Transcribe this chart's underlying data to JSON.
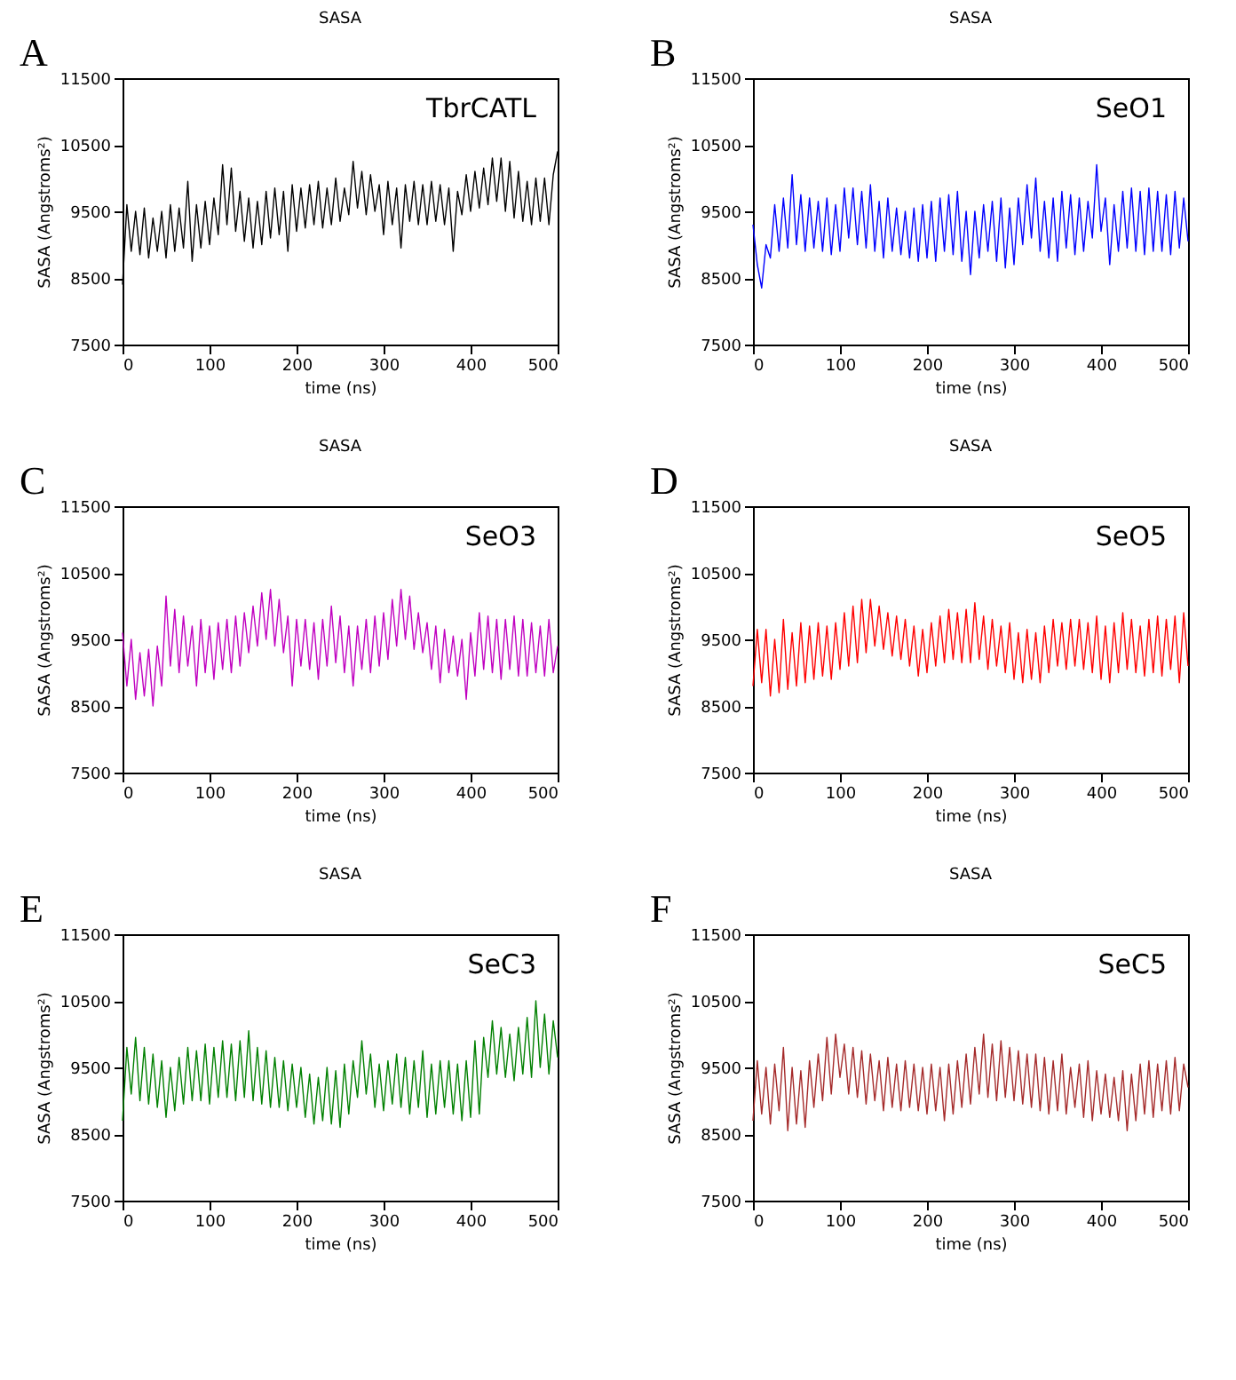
{
  "chart_data": [
    {
      "type": "line",
      "title": "SASA",
      "xlabel": "time (ns)",
      "ylabel": "SASA (Angstroms²)",
      "annotations": [
        "A",
        "TbrCATL"
      ],
      "xlim": [
        0,
        500
      ],
      "ylim": [
        7500,
        11500
      ],
      "xticks": [
        0,
        100,
        200,
        300,
        400,
        500
      ],
      "yticks": [
        7500,
        8500,
        9500,
        10500,
        11500
      ],
      "x": [
        0,
        5,
        10,
        15,
        20,
        25,
        30,
        35,
        40,
        45,
        50,
        55,
        60,
        65,
        70,
        75,
        80,
        85,
        90,
        95,
        100,
        105,
        110,
        115,
        120,
        125,
        130,
        135,
        140,
        145,
        150,
        155,
        160,
        165,
        170,
        175,
        180,
        185,
        190,
        195,
        200,
        205,
        210,
        215,
        220,
        225,
        230,
        235,
        240,
        245,
        250,
        255,
        260,
        265,
        270,
        275,
        280,
        285,
        290,
        295,
        300,
        305,
        310,
        315,
        320,
        325,
        330,
        335,
        340,
        345,
        350,
        355,
        360,
        365,
        370,
        375,
        380,
        385,
        390,
        395,
        400,
        405,
        410,
        415,
        420,
        425,
        430,
        435,
        440,
        445,
        450,
        455,
        460,
        465,
        470,
        475,
        480,
        485,
        490,
        495,
        500
      ],
      "series": [
        {
          "color": "#000000",
          "values": [
            8400,
            9600,
            8900,
            9500,
            8850,
            9550,
            8800,
            9400,
            8900,
            9500,
            8800,
            9600,
            8900,
            9550,
            8950,
            9950,
            8750,
            9600,
            8950,
            9650,
            9000,
            9700,
            9150,
            10200,
            9300,
            10150,
            9200,
            9800,
            9050,
            9700,
            8950,
            9650,
            9000,
            9800,
            9100,
            9850,
            9150,
            9800,
            8900,
            9900,
            9200,
            9850,
            9250,
            9900,
            9300,
            9950,
            9250,
            9850,
            9300,
            10000,
            9350,
            9850,
            9450,
            10250,
            9550,
            10100,
            9450,
            10050,
            9500,
            9900,
            9150,
            9950,
            9300,
            9850,
            8950,
            9900,
            9350,
            9950,
            9300,
            9900,
            9300,
            9950,
            9350,
            9900,
            9300,
            9850,
            8900,
            9800,
            9450,
            10050,
            9500,
            10100,
            9550,
            10150,
            9600,
            10300,
            9650,
            10300,
            9500,
            10250,
            9400,
            10100,
            9350,
            9950,
            9300,
            10000,
            9350,
            10000,
            9300,
            10050,
            10400
          ]
        }
      ]
    },
    {
      "type": "line",
      "title": "SASA",
      "xlabel": "time (ns)",
      "ylabel": "SASA (Angstroms²)",
      "annotations": [
        "B",
        "SeO1"
      ],
      "xlim": [
        0,
        500
      ],
      "ylim": [
        7500,
        11500
      ],
      "xticks": [
        0,
        100,
        200,
        300,
        400,
        500
      ],
      "yticks": [
        7500,
        8500,
        9500,
        10500,
        11500
      ],
      "x": [
        0,
        5,
        10,
        15,
        20,
        25,
        30,
        35,
        40,
        45,
        50,
        55,
        60,
        65,
        70,
        75,
        80,
        85,
        90,
        95,
        100,
        105,
        110,
        115,
        120,
        125,
        130,
        135,
        140,
        145,
        150,
        155,
        160,
        165,
        170,
        175,
        180,
        185,
        190,
        195,
        200,
        205,
        210,
        215,
        220,
        225,
        230,
        235,
        240,
        245,
        250,
        255,
        260,
        265,
        270,
        275,
        280,
        285,
        290,
        295,
        300,
        305,
        310,
        315,
        320,
        325,
        330,
        335,
        340,
        345,
        350,
        355,
        360,
        365,
        370,
        375,
        380,
        385,
        390,
        395,
        400,
        405,
        410,
        415,
        420,
        425,
        430,
        435,
        440,
        445,
        450,
        455,
        460,
        465,
        470,
        475,
        480,
        485,
        490,
        495,
        500
      ],
      "series": [
        {
          "color": "#0000ff",
          "values": [
            9300,
            8700,
            8350,
            9000,
            8800,
            9600,
            8900,
            9700,
            8950,
            10050,
            9000,
            9750,
            8900,
            9700,
            8950,
            9650,
            8900,
            9700,
            8850,
            9600,
            8900,
            9850,
            9100,
            9850,
            9000,
            9800,
            8950,
            9900,
            8900,
            9650,
            8800,
            9700,
            8900,
            9550,
            8850,
            9500,
            8800,
            9550,
            8750,
            9600,
            8800,
            9650,
            8750,
            9700,
            8900,
            9750,
            8850,
            9800,
            8750,
            9500,
            8550,
            9500,
            8800,
            9600,
            8900,
            9650,
            8750,
            9700,
            8650,
            9550,
            8700,
            9700,
            9000,
            9900,
            9100,
            10000,
            8900,
            9650,
            8800,
            9700,
            8750,
            9800,
            8950,
            9750,
            8850,
            9700,
            8900,
            9650,
            9100,
            10200,
            9200,
            9700,
            8700,
            9600,
            8900,
            9800,
            8950,
            9850,
            8900,
            9800,
            8850,
            9850,
            8900,
            9800,
            8900,
            9750,
            8850,
            9800,
            8950,
            9700,
            9050
          ]
        }
      ]
    },
    {
      "type": "line",
      "title": "SASA",
      "xlabel": "time (ns)",
      "ylabel": "SASA (Angstroms²)",
      "annotations": [
        "C",
        "SeO3"
      ],
      "xlim": [
        0,
        500
      ],
      "ylim": [
        7500,
        11500
      ],
      "xticks": [
        0,
        100,
        200,
        300,
        400,
        500
      ],
      "yticks": [
        7500,
        8500,
        9500,
        10500,
        11500
      ],
      "x": [
        0,
        5,
        10,
        15,
        20,
        25,
        30,
        35,
        40,
        45,
        50,
        55,
        60,
        65,
        70,
        75,
        80,
        85,
        90,
        95,
        100,
        105,
        110,
        115,
        120,
        125,
        130,
        135,
        140,
        145,
        150,
        155,
        160,
        165,
        170,
        175,
        180,
        185,
        190,
        195,
        200,
        205,
        210,
        215,
        220,
        225,
        230,
        235,
        240,
        245,
        250,
        255,
        260,
        265,
        270,
        275,
        280,
        285,
        290,
        295,
        300,
        305,
        310,
        315,
        320,
        325,
        330,
        335,
        340,
        345,
        350,
        355,
        360,
        365,
        370,
        375,
        380,
        385,
        390,
        395,
        400,
        405,
        410,
        415,
        420,
        425,
        430,
        435,
        440,
        445,
        450,
        455,
        460,
        465,
        470,
        475,
        480,
        485,
        490,
        495,
        500
      ],
      "series": [
        {
          "color": "#c000c0",
          "values": [
            9600,
            8800,
            9500,
            8600,
            9300,
            8650,
            9350,
            8500,
            9400,
            8800,
            10150,
            9100,
            9950,
            9000,
            9850,
            9100,
            9700,
            8800,
            9800,
            9000,
            9700,
            8900,
            9750,
            9050,
            9800,
            9000,
            9850,
            9100,
            9900,
            9300,
            10000,
            9400,
            10200,
            9500,
            10250,
            9400,
            10100,
            9300,
            9850,
            8800,
            9800,
            9100,
            9800,
            9050,
            9750,
            8900,
            9800,
            9100,
            10000,
            9150,
            9850,
            9000,
            9700,
            8800,
            9700,
            9050,
            9800,
            9000,
            9850,
            9100,
            9900,
            9200,
            10100,
            9400,
            10250,
            9500,
            10150,
            9350,
            9900,
            9300,
            9750,
            9050,
            9700,
            8850,
            9650,
            9000,
            9550,
            8950,
            9500,
            8600,
            9600,
            8950,
            9900,
            9050,
            9850,
            9000,
            9800,
            8900,
            9800,
            9050,
            9850,
            8950,
            9800,
            8950,
            9750,
            9000,
            9700,
            8950,
            9800,
            9000,
            9400
          ]
        }
      ]
    },
    {
      "type": "line",
      "title": "SASA",
      "xlabel": "time (ns)",
      "ylabel": "SASA (Angstroms²)",
      "annotations": [
        "D",
        "SeO5"
      ],
      "xlim": [
        0,
        500
      ],
      "ylim": [
        7500,
        11500
      ],
      "xticks": [
        0,
        100,
        200,
        300,
        400,
        500
      ],
      "yticks": [
        7500,
        8500,
        9500,
        10500,
        11500
      ],
      "x": [
        0,
        5,
        10,
        15,
        20,
        25,
        30,
        35,
        40,
        45,
        50,
        55,
        60,
        65,
        70,
        75,
        80,
        85,
        90,
        95,
        100,
        105,
        110,
        115,
        120,
        125,
        130,
        135,
        140,
        145,
        150,
        155,
        160,
        165,
        170,
        175,
        180,
        185,
        190,
        195,
        200,
        205,
        210,
        215,
        220,
        225,
        230,
        235,
        240,
        245,
        250,
        255,
        260,
        265,
        270,
        275,
        280,
        285,
        290,
        295,
        300,
        305,
        310,
        315,
        320,
        325,
        330,
        335,
        340,
        345,
        350,
        355,
        360,
        365,
        370,
        375,
        380,
        385,
        390,
        395,
        400,
        405,
        410,
        415,
        420,
        425,
        430,
        435,
        440,
        445,
        450,
        455,
        460,
        465,
        470,
        475,
        480,
        485,
        490,
        495,
        500
      ],
      "series": [
        {
          "color": "#ff0000",
          "values": [
            8800,
            9650,
            8850,
            9650,
            8650,
            9500,
            8700,
            9800,
            8750,
            9600,
            8800,
            9750,
            8850,
            9700,
            8900,
            9750,
            8950,
            9700,
            8900,
            9750,
            9050,
            9900,
            9100,
            10000,
            9150,
            10100,
            9300,
            10100,
            9400,
            10000,
            9350,
            9900,
            9250,
            9850,
            9200,
            9800,
            9100,
            9700,
            8950,
            9650,
            9000,
            9750,
            9100,
            9850,
            9150,
            9950,
            9200,
            9900,
            9150,
            9950,
            9150,
            10050,
            9200,
            9850,
            9050,
            9800,
            9100,
            9700,
            9000,
            9750,
            8900,
            9600,
            8850,
            9650,
            8900,
            9600,
            8850,
            9700,
            9000,
            9800,
            9100,
            9750,
            9050,
            9800,
            9100,
            9800,
            9050,
            9750,
            9000,
            9850,
            8900,
            9700,
            8850,
            9750,
            9000,
            9900,
            9050,
            9800,
            9000,
            9700,
            8950,
            9800,
            9000,
            9850,
            8950,
            9800,
            9050,
            9850,
            8850,
            9900,
            9100
          ]
        }
      ]
    },
    {
      "type": "line",
      "title": "SASA",
      "xlabel": "time (ns)",
      "ylabel": "SASA (Angstroms²)",
      "annotations": [
        "E",
        "SeC3"
      ],
      "xlim": [
        0,
        500
      ],
      "ylim": [
        7500,
        11500
      ],
      "xticks": [
        0,
        100,
        200,
        300,
        400,
        500
      ],
      "yticks": [
        7500,
        8500,
        9500,
        10500,
        11500
      ],
      "x": [
        0,
        5,
        10,
        15,
        20,
        25,
        30,
        35,
        40,
        45,
        50,
        55,
        60,
        65,
        70,
        75,
        80,
        85,
        90,
        95,
        100,
        105,
        110,
        115,
        120,
        125,
        130,
        135,
        140,
        145,
        150,
        155,
        160,
        165,
        170,
        175,
        180,
        185,
        190,
        195,
        200,
        205,
        210,
        215,
        220,
        225,
        230,
        235,
        240,
        245,
        250,
        255,
        260,
        265,
        270,
        275,
        280,
        285,
        290,
        295,
        300,
        305,
        310,
        315,
        320,
        325,
        330,
        335,
        340,
        345,
        350,
        355,
        360,
        365,
        370,
        375,
        380,
        385,
        390,
        395,
        400,
        405,
        410,
        415,
        420,
        425,
        430,
        435,
        440,
        445,
        450,
        455,
        460,
        465,
        470,
        475,
        480,
        485,
        490,
        495,
        500
      ],
      "series": [
        {
          "color": "#008000",
          "values": [
            8700,
            9800,
            9100,
            9950,
            9000,
            9800,
            8950,
            9700,
            8900,
            9600,
            8750,
            9500,
            8850,
            9650,
            8950,
            9800,
            9000,
            9750,
            9000,
            9850,
            8950,
            9800,
            9050,
            9900,
            9050,
            9850,
            9000,
            9900,
            9050,
            10050,
            9000,
            9800,
            8950,
            9750,
            8900,
            9650,
            8900,
            9600,
            8850,
            9550,
            8900,
            9500,
            8750,
            9400,
            8650,
            9350,
            8700,
            9500,
            8650,
            9450,
            8600,
            9550,
            8800,
            9600,
            9050,
            9900,
            9100,
            9700,
            8900,
            9550,
            8850,
            9600,
            8950,
            9700,
            8900,
            9650,
            8800,
            9600,
            8900,
            9750,
            8750,
            9550,
            8800,
            9600,
            8900,
            9600,
            8800,
            9550,
            8700,
            9600,
            8750,
            9900,
            8800,
            9950,
            9350,
            10200,
            9400,
            10100,
            9350,
            10000,
            9300,
            10100,
            9400,
            10250,
            9350,
            10500,
            9500,
            10300,
            9400,
            10200,
            9650
          ]
        }
      ]
    },
    {
      "type": "line",
      "title": "SASA",
      "xlabel": "time (ns)",
      "ylabel": "SASA (Angstroms²)",
      "annotations": [
        "F",
        "SeC5"
      ],
      "xlim": [
        0,
        500
      ],
      "ylim": [
        7500,
        11500
      ],
      "xticks": [
        0,
        100,
        200,
        300,
        400,
        500
      ],
      "yticks": [
        7500,
        8500,
        9500,
        10500,
        11500
      ],
      "x": [
        0,
        5,
        10,
        15,
        20,
        25,
        30,
        35,
        40,
        45,
        50,
        55,
        60,
        65,
        70,
        75,
        80,
        85,
        90,
        95,
        100,
        105,
        110,
        115,
        120,
        125,
        130,
        135,
        140,
        145,
        150,
        155,
        160,
        165,
        170,
        175,
        180,
        185,
        190,
        195,
        200,
        205,
        210,
        215,
        220,
        225,
        230,
        235,
        240,
        245,
        250,
        255,
        260,
        265,
        270,
        275,
        280,
        285,
        290,
        295,
        300,
        305,
        310,
        315,
        320,
        325,
        330,
        335,
        340,
        345,
        350,
        355,
        360,
        365,
        370,
        375,
        380,
        385,
        390,
        395,
        400,
        405,
        410,
        415,
        420,
        425,
        430,
        435,
        440,
        445,
        450,
        455,
        460,
        465,
        470,
        475,
        480,
        485,
        490,
        495,
        500
      ],
      "series": [
        {
          "color": "#a52a2a",
          "values": [
            8700,
            9600,
            8800,
            9500,
            8650,
            9550,
            8850,
            9800,
            8550,
            9500,
            8650,
            9450,
            8600,
            9600,
            8900,
            9700,
            9000,
            9950,
            9100,
            10000,
            9350,
            9850,
            9100,
            9800,
            9050,
            9750,
            8950,
            9700,
            9000,
            9600,
            8850,
            9650,
            8900,
            9550,
            8850,
            9600,
            8900,
            9550,
            8850,
            9500,
            8800,
            9550,
            8850,
            9500,
            8700,
            9550,
            8800,
            9600,
            8900,
            9700,
            8950,
            9800,
            9100,
            10000,
            9050,
            9850,
            9000,
            9900,
            9050,
            9800,
            9000,
            9750,
            8950,
            9700,
            8900,
            9700,
            8850,
            9650,
            8800,
            9600,
            8850,
            9700,
            8800,
            9500,
            8900,
            9550,
            8750,
            9600,
            8700,
            9450,
            8800,
            9400,
            8750,
            9350,
            8700,
            9450,
            8550,
            9400,
            8700,
            9550,
            8800,
            9600,
            8750,
            9550,
            8850,
            9600,
            8800,
            9650,
            8850,
            9550,
            9200
          ]
        }
      ]
    }
  ]
}
